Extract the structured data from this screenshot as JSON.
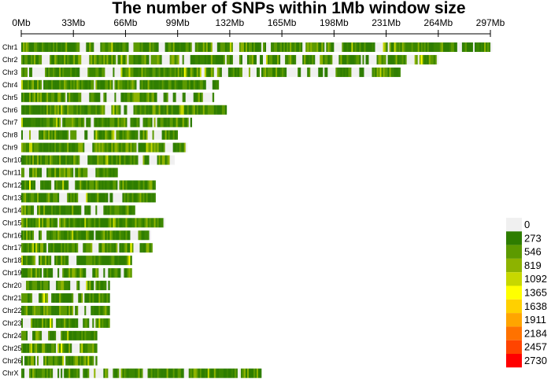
{
  "chart_data": {
    "type": "heatmap",
    "title": "The number of SNPs within 1Mb window size",
    "x_ticks": [
      "0Mb",
      "33Mb",
      "66Mb",
      "99Mb",
      "132Mb",
      "165Mb",
      "198Mb",
      "231Mb",
      "264Mb",
      "297Mb"
    ],
    "x_tick_values": [
      0,
      33,
      66,
      99,
      132,
      165,
      198,
      231,
      264,
      297
    ],
    "xlim": [
      0,
      297
    ],
    "window_size_mb": 1,
    "chromosomes": [
      {
        "name": "Chr1",
        "length_mb": 298
      },
      {
        "name": "Chr2",
        "length_mb": 264
      },
      {
        "name": "Chr3",
        "length_mb": 240
      },
      {
        "name": "Chr4",
        "length_mb": 125
      },
      {
        "name": "Chr5",
        "length_mb": 122
      },
      {
        "name": "Chr6",
        "length_mb": 130
      },
      {
        "name": "Chr7",
        "length_mb": 108
      },
      {
        "name": "Chr8",
        "length_mb": 99
      },
      {
        "name": "Chr9",
        "length_mb": 105
      },
      {
        "name": "Chr10",
        "length_mb": 97
      },
      {
        "name": "Chr11",
        "length_mb": 61
      },
      {
        "name": "Chr12",
        "length_mb": 85
      },
      {
        "name": "Chr13",
        "length_mb": 85
      },
      {
        "name": "Chr14",
        "length_mb": 72
      },
      {
        "name": "Chr15",
        "length_mb": 91
      },
      {
        "name": "Chr16",
        "length_mb": 82
      },
      {
        "name": "Chr17",
        "length_mb": 83
      },
      {
        "name": "Chr18",
        "length_mb": 70
      },
      {
        "name": "Chr19",
        "length_mb": 70
      },
      {
        "name": "Chr20",
        "length_mb": 56
      },
      {
        "name": "Chr21",
        "length_mb": 56
      },
      {
        "name": "Chr22",
        "length_mb": 56
      },
      {
        "name": "Chr23",
        "length_mb": 56
      },
      {
        "name": "Chr24",
        "length_mb": 48
      },
      {
        "name": "Chr25",
        "length_mb": 48
      },
      {
        "name": "Chr26",
        "length_mb": 48
      },
      {
        "name": "ChrX",
        "length_mb": 152
      }
    ],
    "legend": {
      "labels": [
        "0",
        "273",
        "546",
        "819",
        "1092",
        "1365",
        "1638",
        "1911",
        "2184",
        "2457",
        "2730"
      ],
      "colors": [
        "#f0f0f0",
        "#2e7d00",
        "#5c9a00",
        "#8db300",
        "#c7d800",
        "#ffff00",
        "#ffd000",
        "#ffa500",
        "#ff7200",
        "#ff4400",
        "#ff0000"
      ]
    }
  }
}
